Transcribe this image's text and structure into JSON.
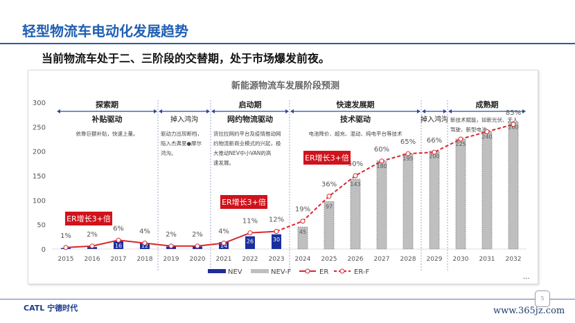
{
  "header": {
    "title": "轻型物流车电动化发展趋势",
    "subtitle": "当前物流车处于二、三阶段的交替期，处于市场爆发前夜。"
  },
  "footer": {
    "logo": "CATL 宁德时代",
    "page": "5",
    "watermark": "www.365jz.com",
    "more": "..."
  },
  "chart_data": {
    "type": "bar",
    "title": "新能源物流车发展阶段预测",
    "categories": [
      "2015",
      "2016",
      "2017",
      "2018",
      "2019",
      "2020",
      "2021",
      "2022",
      "2023",
      "2024",
      "2025",
      "2026",
      "2027",
      "2028",
      "2029",
      "2030",
      "2031",
      "2032"
    ],
    "ylim": [
      0,
      300
    ],
    "yticks": [
      "0",
      "50",
      "100",
      "150",
      "200",
      "250",
      "300"
    ],
    "series": [
      {
        "name": "NEV",
        "values": [
          2,
          4,
          16,
          12,
          5,
          5,
          14,
          26,
          30,
          null,
          null,
          null,
          null,
          null,
          null,
          null,
          null,
          null
        ],
        "labels": [
          "",
          "",
          "16",
          "12",
          "",
          "",
          "14",
          "26",
          "30",
          "",
          "",
          "",
          "",
          "",
          "",
          "",
          "",
          ""
        ],
        "color": "#1a2f9e"
      },
      {
        "name": "NEV-F",
        "values": [
          null,
          null,
          null,
          null,
          null,
          null,
          null,
          null,
          null,
          45,
          97,
          143,
          180,
          195,
          200,
          225,
          240,
          260
        ],
        "labels": [
          "",
          "",
          "",
          "",
          "",
          "",
          "",
          "",
          "",
          "45",
          "97",
          "143",
          "180",
          "195",
          "200",
          "225",
          "240",
          "260"
        ],
        "color": "#bfbfbf"
      },
      {
        "name": "ER",
        "values": [
          1,
          2,
          6,
          4,
          2,
          2,
          4,
          11,
          12,
          null,
          null,
          null,
          null,
          null,
          null,
          null,
          null,
          null
        ],
        "labels": [
          "1%",
          "2%",
          "6%",
          "4%",
          "2%",
          "2%",
          "4%",
          "11%",
          "12%",
          "",
          "",
          "",
          "",
          "",
          "",
          "",
          "",
          ""
        ],
        "color": "#d7262e"
      },
      {
        "name": "ER-F",
        "values": [
          null,
          null,
          null,
          null,
          null,
          null,
          null,
          null,
          12,
          19,
          36,
          50,
          60,
          65,
          66,
          75,
          80,
          85
        ],
        "labels": [
          "",
          "",
          "",
          "",
          "",
          "",
          "",
          "",
          "",
          "19%",
          "36%",
          "50%",
          "60%",
          "65%",
          "66%",
          "",
          "",
          "85%"
        ],
        "color": "#d7262e"
      }
    ],
    "er_scale_note": "ER plotted as percent x3 on left axis",
    "phases": [
      {
        "name": "探索期",
        "driver": "补贴驱动",
        "desc": "依靠巨额补贴，快速上量。",
        "from": 0,
        "to": 3
      },
      {
        "name": "",
        "driver": "掉入鸿沟",
        "desc": "驱动力出现断档，陷入杰弗里●摩尔鸿沟。",
        "from": 4,
        "to": 5
      },
      {
        "name": "启动期",
        "driver": "网约物流驱动",
        "desc": "货拉拉网约平台及疫情推动网约物流新商业模式的兴起，极大推动NEV中小VAN的高速发展。",
        "from": 6,
        "to": 8
      },
      {
        "name": "快速发展期",
        "driver": "技术驱动",
        "desc": "电池降价、超充、混动、纯电平台等技术",
        "from": 9,
        "to": 13
      },
      {
        "name": "",
        "driver": "掉入鸿沟",
        "desc": "",
        "from": 14,
        "to": 14
      },
      {
        "name": "成熟期",
        "driver": "",
        "desc": "新技术赋能，如新光伏、无人驾驶、新型电池",
        "from": 15,
        "to": 17
      }
    ],
    "callouts": [
      "ER增长3+倍",
      "ER增长3+倍",
      "ER增长3+倍"
    ],
    "legend": [
      "NEV",
      "NEV-F",
      "ER",
      "ER-F"
    ],
    "legend_position": "bottom"
  }
}
